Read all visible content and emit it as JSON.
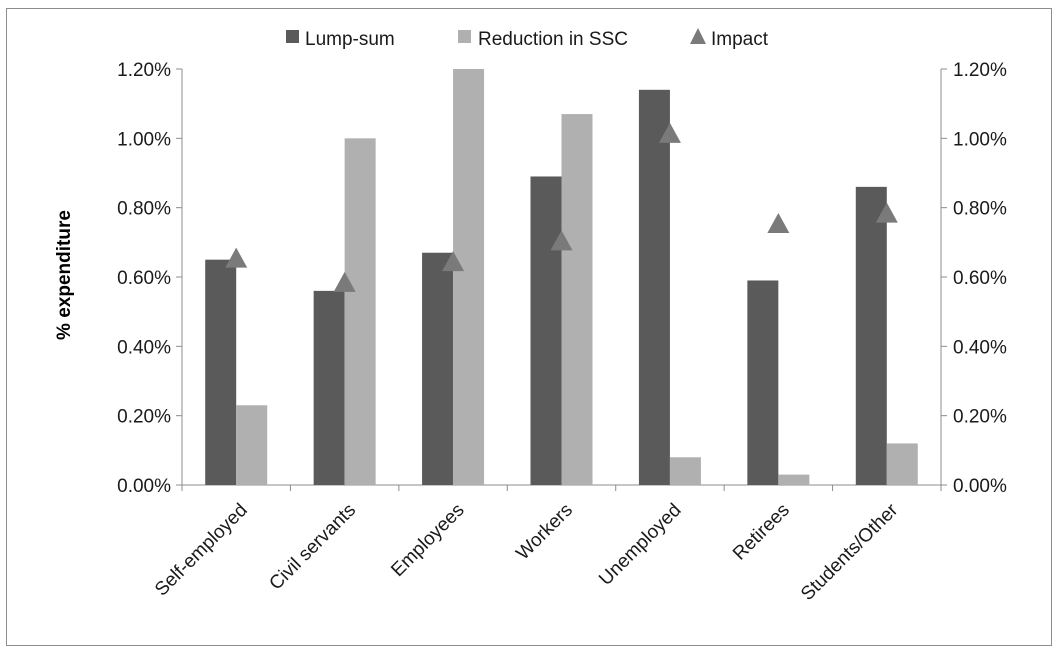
{
  "chart_data": {
    "type": "bar",
    "categories": [
      "Self-employed",
      "Civil servants",
      "Employees",
      "Workers",
      "Unemployed",
      "Retirees",
      "Students/Other"
    ],
    "series": [
      {
        "name": "Lump-sum",
        "kind": "bar",
        "color": "#5a5a5a",
        "values": [
          0.0065,
          0.0056,
          0.0067,
          0.0089,
          0.0114,
          0.0059,
          0.0086
        ]
      },
      {
        "name": "Reduction in SSC",
        "kind": "bar",
        "color": "#b0b0b0",
        "values": [
          0.0023,
          0.01,
          0.012,
          0.0107,
          0.0008,
          0.0003,
          0.0012
        ]
      },
      {
        "name": "Impact",
        "kind": "marker-triangle",
        "color": "#7a7a7a",
        "values": [
          0.0065,
          0.0058,
          0.0064,
          0.007,
          0.0101,
          0.0075,
          0.0078
        ]
      }
    ],
    "ylabel": "% expenditure",
    "ylim": [
      0,
      0.012
    ],
    "yticks": [
      "0.00%",
      "0.20%",
      "0.40%",
      "0.60%",
      "0.80%",
      "1.00%",
      "1.20%"
    ],
    "secondary_yticks": [
      "0.00%",
      "0.20%",
      "0.40%",
      "0.60%",
      "0.80%",
      "1.00%",
      "1.20%"
    ],
    "legend_position": "top",
    "grid": false
  }
}
